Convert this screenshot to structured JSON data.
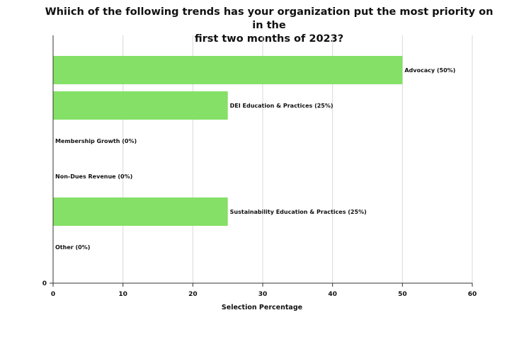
{
  "chart_data": {
    "type": "bar",
    "orientation": "horizontal",
    "title_lines": [
      "Whiich of the following trends has your organization put the most priority on in the",
      "first two months of 2023?"
    ],
    "xlabel": "Selection Percentage",
    "ylabel": "",
    "xlim": [
      0,
      60
    ],
    "x_ticks": [
      0,
      10,
      20,
      30,
      40,
      50,
      60
    ],
    "y_ticks": [
      0
    ],
    "grid": "vertical",
    "bar_color": "#84e066",
    "categories": [
      "Advocacy (50%)",
      "DEI Education & Practices (25%)",
      "Membership Growth (0%)",
      "Non-Dues Revenue (0%)",
      "Sustainability Education & Practices (25%)",
      "Other (0%)"
    ],
    "values": [
      50,
      25,
      0,
      0,
      25,
      0
    ]
  }
}
